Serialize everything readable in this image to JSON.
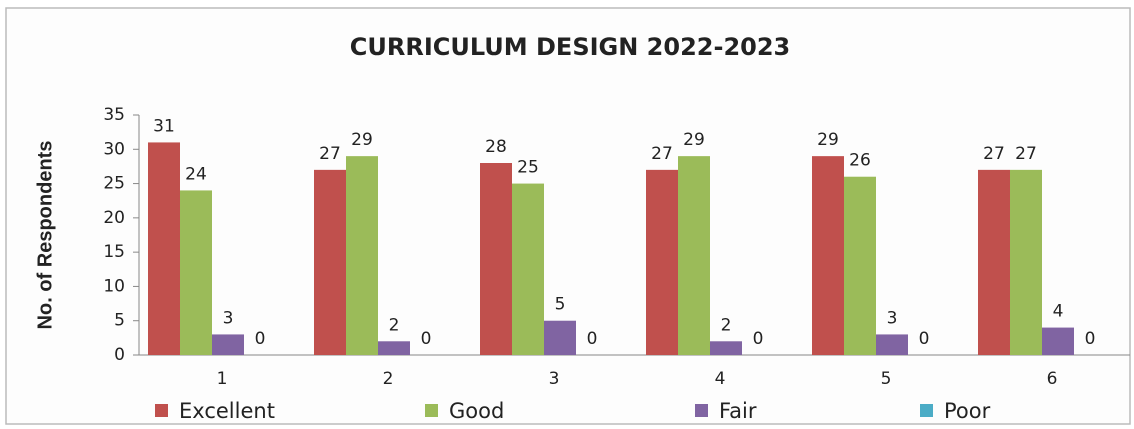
{
  "chart_data": {
    "type": "bar",
    "title": "CURRICULUM DESIGN 2022-2023",
    "ylabel": "No. of Respondents",
    "categories": [
      "1",
      "2",
      "3",
      "4",
      "5",
      "6"
    ],
    "series": [
      {
        "name": "Excellent",
        "color": "#c0504d",
        "values": [
          31,
          27,
          28,
          27,
          29,
          27
        ]
      },
      {
        "name": "Good",
        "color": "#9bbb59",
        "values": [
          24,
          29,
          25,
          29,
          26,
          27
        ]
      },
      {
        "name": "Fair",
        "color": "#8064a2",
        "values": [
          3,
          2,
          5,
          2,
          3,
          4
        ]
      },
      {
        "name": "Poor",
        "color": "#4bacc6",
        "values": [
          0,
          0,
          0,
          0,
          0,
          0
        ]
      }
    ],
    "ylim": [
      0,
      35
    ],
    "yticks": [
      0,
      5,
      10,
      15,
      20,
      25,
      30,
      35
    ],
    "legend": "bottom",
    "grid": false
  }
}
